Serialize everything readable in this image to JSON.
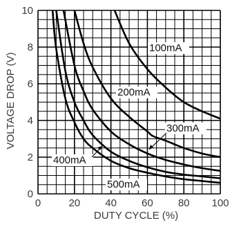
{
  "chart_data": {
    "type": "line",
    "xlabel": "DUTY CYCLE (%)",
    "ylabel": "VOLTAGE DROP (V)",
    "xlim": [
      0,
      100
    ],
    "ylim": [
      0,
      10
    ],
    "x_ticks": [
      "0",
      "20",
      "40",
      "60",
      "80",
      "100"
    ],
    "y_ticks": [
      "0",
      "2",
      "4",
      "6",
      "8",
      "10"
    ],
    "grid": true,
    "series": [
      {
        "name": "100mA",
        "x": [
          42,
          50,
          60,
          70,
          80,
          90,
          100
        ],
        "y": [
          10,
          8.2,
          6.8,
          5.8,
          5.0,
          4.5,
          4.1
        ]
      },
      {
        "name": "200mA",
        "x": [
          20,
          25,
          30,
          40,
          50,
          60,
          63,
          70,
          80,
          90,
          100
        ],
        "y": [
          10,
          8.2,
          6.9,
          5.2,
          4.2,
          3.4,
          3.15,
          2.9,
          2.5,
          2.2,
          2.0
        ]
      },
      {
        "name": "300mA",
        "x": [
          14,
          20,
          25,
          30,
          40,
          50,
          60,
          70,
          80,
          90,
          100
        ],
        "y": [
          10,
          7.0,
          5.6,
          4.6,
          3.4,
          2.7,
          2.2,
          1.85,
          1.6,
          1.4,
          1.25
        ]
      },
      {
        "name": "400mA",
        "x": [
          10,
          15,
          20,
          25,
          30,
          40,
          50,
          60,
          70,
          80,
          90,
          100
        ],
        "y": [
          10,
          6.7,
          5.0,
          4.0,
          3.2,
          2.3,
          1.8,
          1.45,
          1.2,
          1.05,
          0.95,
          0.85
        ]
      },
      {
        "name": "500mA",
        "x": [
          8,
          10,
          15,
          20,
          25,
          30,
          40,
          50,
          60,
          70,
          80,
          90,
          100
        ],
        "y": [
          10,
          7.9,
          5.2,
          3.9,
          3.0,
          2.5,
          1.8,
          1.4,
          1.15,
          0.95,
          0.8,
          0.7,
          0.6
        ]
      }
    ]
  }
}
